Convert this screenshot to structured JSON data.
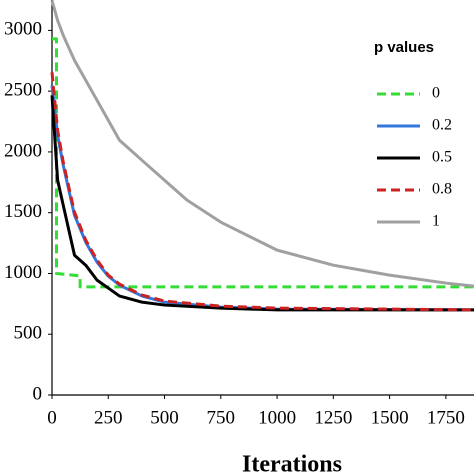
{
  "chart_data": {
    "type": "line",
    "xlabel": "Iterations",
    "legend_title": "p values",
    "legend": "upper right",
    "xlim": [
      0,
      1875
    ],
    "ylim": [
      0,
      3250
    ],
    "xticks": [
      0,
      250,
      500,
      750,
      1000,
      1250,
      1500,
      1750
    ],
    "yticks": [
      0,
      500,
      1000,
      1500,
      2000,
      2500,
      3000
    ],
    "series": [
      {
        "name": "0",
        "color": "#33dd33",
        "dash": true,
        "x": [
          0,
          20,
          20,
          125,
          125,
          1875
        ],
        "values": [
          2930,
          2930,
          1000,
          980,
          890,
          890
        ]
      },
      {
        "name": "0.2",
        "color": "#3377dd",
        "dash": false,
        "x": [
          0,
          25,
          50,
          100,
          150,
          200,
          250,
          300,
          400,
          500,
          750,
          1000,
          1875
        ],
        "values": [
          2548,
          2137,
          1890,
          1479,
          1257,
          1093,
          978,
          904,
          814,
          764,
          723,
          707,
          700
        ]
      },
      {
        "name": "0.5",
        "color": "#000000",
        "dash": false,
        "x": [
          0,
          25,
          50,
          100,
          150,
          200,
          250,
          300,
          400,
          500,
          750,
          1000,
          1875
        ],
        "values": [
          2465,
          1767,
          1561,
          1150,
          1068,
          945,
          880,
          814,
          764,
          740,
          715,
          700,
          700
        ]
      },
      {
        "name": "0.8",
        "color": "#cc2222",
        "dash": true,
        "x": [
          0,
          25,
          50,
          100,
          150,
          200,
          250,
          300,
          400,
          500,
          750,
          1000,
          1875
        ],
        "values": [
          2655,
          2178,
          1915,
          1504,
          1274,
          1110,
          986,
          912,
          822,
          773,
          731,
          715,
          700
        ]
      },
      {
        "name": "1",
        "color": "#a0a0a0",
        "dash": false,
        "x": [
          0,
          25,
          50,
          100,
          200,
          300,
          400,
          500,
          600,
          750,
          1000,
          1250,
          1500,
          1750,
          1875
        ],
        "values": [
          3246,
          3082,
          2959,
          2753,
          2425,
          2096,
          1931,
          1767,
          1603,
          1422,
          1192,
          1068,
          986,
          921,
          896
        ]
      }
    ]
  }
}
